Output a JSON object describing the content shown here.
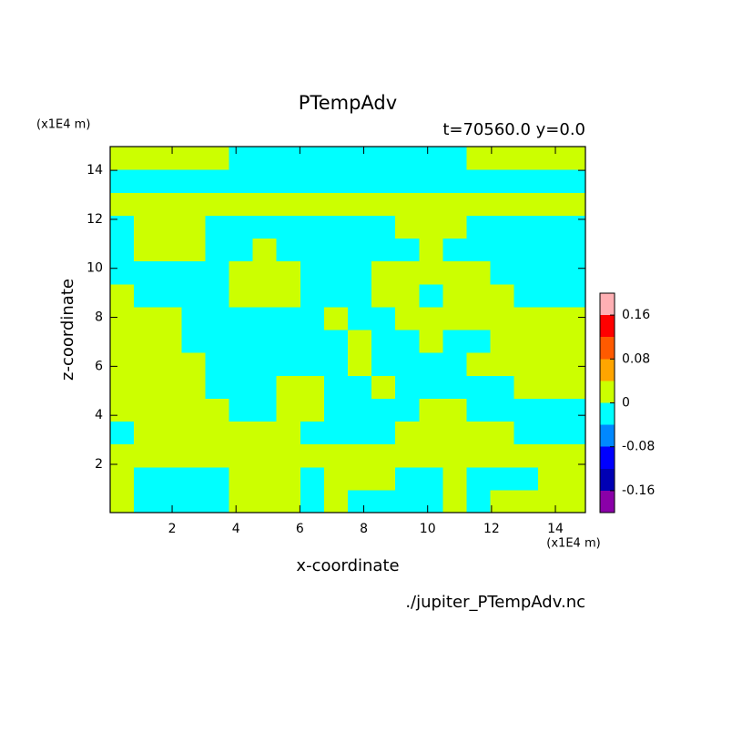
{
  "chart_data": {
    "type": "contour",
    "title": "PTempAdv",
    "subtitle": "t=70560.0 y=0.0",
    "x_label": "x-coordinate",
    "y_label": "z-coordinate",
    "x_unit": "(x1E4 m)",
    "y_unit": "(x1E4 m)",
    "source": "./jupiter_PTempAdv.nc",
    "xlim": [
      0.06,
      14.94
    ],
    "ylim": [
      0.03,
      14.97
    ],
    "xticks": [
      2,
      4,
      6,
      8,
      10,
      12,
      14
    ],
    "yticks": [
      2,
      4,
      6,
      8,
      10,
      12,
      14
    ],
    "levels": [
      -0.2,
      -0.16,
      -0.12,
      -0.08,
      -0.04,
      0,
      0.04,
      0.08,
      0.12,
      0.16,
      0.2
    ],
    "colors": [
      "#8a00a8",
      "#0000b4",
      "#0000ff",
      "#0088ff",
      "#00ffff",
      "#ccff00",
      "#ffa500",
      "#ff5a00",
      "#ff0000",
      "#ffb0b4"
    ],
    "colorbar_ticks": [
      -0.16,
      -0.08,
      0,
      0.08,
      0.16
    ],
    "z": [
      [
        0.02,
        -0.02,
        -0.02,
        -0.02,
        -0.02,
        0.02,
        0.02,
        0.02,
        -0.02,
        0.02,
        -0.02,
        -0.02,
        -0.02,
        -0.02,
        0.02,
        -0.02,
        0.02,
        0.02,
        0.02,
        0.02
      ],
      [
        0.02,
        -0.02,
        -0.02,
        -0.02,
        -0.02,
        0.02,
        0.02,
        0.02,
        -0.02,
        0.02,
        0.02,
        0.02,
        -0.02,
        -0.02,
        0.02,
        -0.02,
        -0.02,
        -0.02,
        0.02,
        0.02
      ],
      [
        0.02,
        0.02,
        0.02,
        0.02,
        0.02,
        0.02,
        0.02,
        0.02,
        0.02,
        0.02,
        0.02,
        0.02,
        0.02,
        0.02,
        0.02,
        0.02,
        0.02,
        0.02,
        0.02,
        0.02
      ],
      [
        -0.02,
        0.02,
        0.02,
        0.02,
        0.02,
        0.02,
        0.02,
        0.02,
        -0.02,
        -0.02,
        -0.02,
        -0.02,
        0.02,
        0.02,
        0.02,
        0.02,
        0.02,
        -0.02,
        -0.02,
        -0.02
      ],
      [
        0.02,
        0.02,
        0.02,
        0.02,
        0.02,
        -0.02,
        -0.02,
        0.02,
        0.02,
        -0.02,
        -0.02,
        -0.02,
        -0.02,
        0.02,
        0.02,
        -0.02,
        -0.02,
        -0.02,
        -0.02,
        -0.02
      ],
      [
        0.02,
        0.02,
        0.02,
        0.02,
        -0.02,
        -0.02,
        -0.02,
        0.02,
        0.02,
        -0.02,
        -0.02,
        0.02,
        -0.02,
        -0.02,
        -0.02,
        -0.02,
        -0.02,
        0.02,
        0.02,
        0.02
      ],
      [
        0.02,
        0.02,
        0.02,
        0.02,
        -0.02,
        -0.02,
        -0.02,
        -0.02,
        -0.02,
        -0.02,
        0.02,
        -0.02,
        -0.02,
        -0.02,
        -0.02,
        0.02,
        0.02,
        0.02,
        0.02,
        0.02
      ],
      [
        0.02,
        0.02,
        0.02,
        -0.02,
        -0.02,
        -0.02,
        -0.02,
        -0.02,
        -0.02,
        -0.02,
        0.02,
        -0.02,
        -0.02,
        0.02,
        -0.02,
        -0.02,
        0.02,
        0.02,
        0.02,
        0.02
      ],
      [
        0.02,
        0.02,
        0.02,
        -0.02,
        -0.02,
        -0.02,
        -0.02,
        -0.02,
        -0.02,
        0.02,
        -0.02,
        -0.02,
        0.02,
        0.02,
        0.02,
        0.02,
        0.02,
        0.02,
        0.02,
        0.02
      ],
      [
        0.02,
        -0.02,
        -0.02,
        -0.02,
        -0.02,
        0.02,
        0.02,
        0.02,
        -0.02,
        -0.02,
        -0.02,
        0.02,
        0.02,
        -0.02,
        0.02,
        0.02,
        0.02,
        -0.02,
        -0.02,
        -0.02
      ],
      [
        -0.02,
        -0.02,
        -0.02,
        -0.02,
        -0.02,
        0.02,
        0.02,
        0.02,
        -0.02,
        -0.02,
        -0.02,
        0.02,
        0.02,
        0.02,
        0.02,
        0.02,
        -0.02,
        -0.02,
        -0.02,
        -0.02
      ],
      [
        -0.02,
        0.02,
        0.02,
        0.02,
        -0.02,
        -0.02,
        0.02,
        -0.02,
        -0.02,
        -0.02,
        -0.02,
        -0.02,
        -0.02,
        0.02,
        -0.02,
        -0.02,
        -0.02,
        -0.02,
        -0.02,
        -0.02
      ],
      [
        -0.02,
        0.02,
        0.02,
        0.02,
        -0.02,
        -0.02,
        -0.02,
        -0.02,
        -0.02,
        -0.02,
        -0.02,
        -0.02,
        0.02,
        0.02,
        0.02,
        -0.02,
        -0.02,
        -0.02,
        -0.02,
        -0.02
      ],
      [
        0.02,
        0.02,
        0.02,
        0.02,
        0.02,
        0.02,
        0.02,
        0.02,
        0.02,
        0.02,
        0.02,
        0.02,
        0.02,
        0.02,
        0.02,
        0.02,
        0.02,
        0.02,
        0.02,
        0.02
      ],
      [
        -0.02,
        -0.02,
        -0.02,
        -0.02,
        -0.02,
        -0.02,
        -0.02,
        -0.02,
        -0.02,
        -0.02,
        -0.02,
        -0.02,
        -0.02,
        -0.02,
        -0.02,
        -0.02,
        -0.02,
        -0.02,
        -0.02,
        -0.02
      ],
      [
        0.02,
        0.02,
        0.02,
        0.02,
        0.02,
        -0.02,
        -0.02,
        -0.02,
        -0.02,
        -0.02,
        -0.02,
        -0.02,
        -0.02,
        -0.02,
        -0.02,
        0.02,
        0.02,
        0.02,
        0.02,
        0.02
      ]
    ]
  }
}
